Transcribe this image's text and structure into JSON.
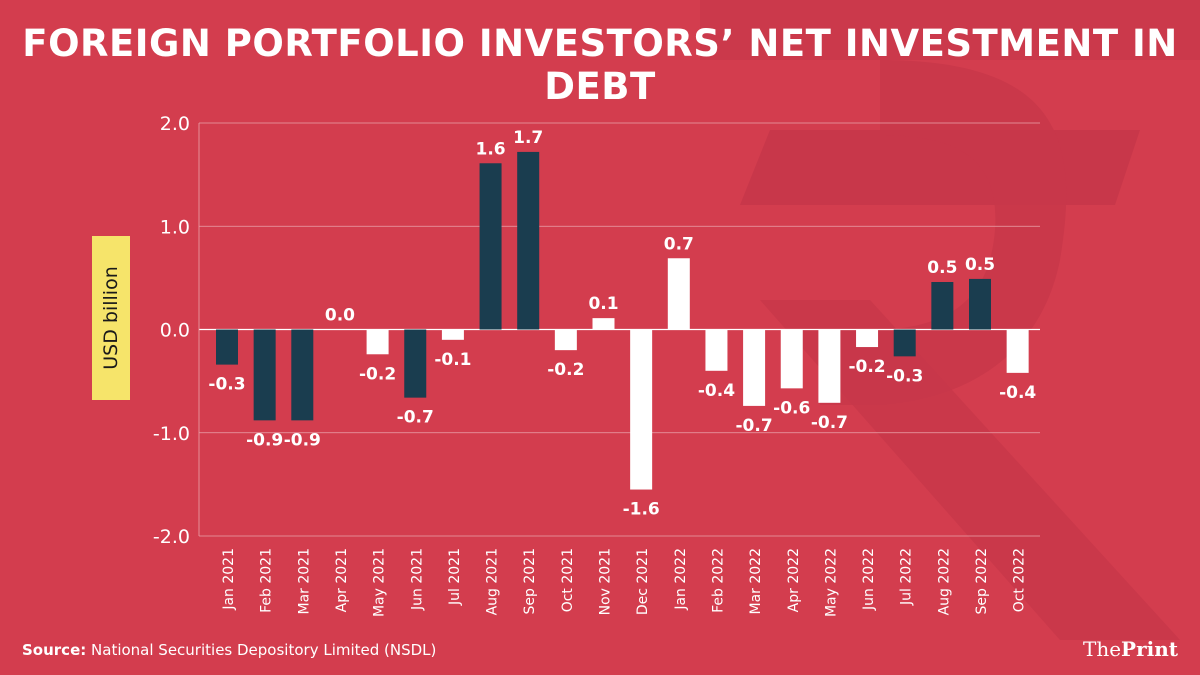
{
  "title": "FOREIGN PORTFOLIO INVESTORS’ NET INVESTMENT IN DEBT",
  "ylabel": "USD billion",
  "source_label": "Source:",
  "source_text": "National Securities Depository Limited (NSDL)",
  "logo": {
    "part1": "The",
    "part2": "Print"
  },
  "colors": {
    "background": "#d33d4e",
    "dark_bar": "#1a3d4f",
    "light_bar": "#ffffff",
    "text": "#ffffff",
    "ylabel_box": "#f6e46a",
    "grid": "#e9a3ab"
  },
  "chart_data": {
    "type": "bar",
    "title": "FOREIGN PORTFOLIO INVESTORS’ NET INVESTMENT IN DEBT",
    "xlabel": "",
    "ylabel": "USD billion",
    "ylim": [
      -2.0,
      2.0
    ],
    "yticks": [
      2.0,
      1.0,
      0.0,
      -1.0,
      -2.0
    ],
    "ytick_labels": [
      "2.0",
      "1.0",
      "0.0",
      "-1.0",
      "-2.0"
    ],
    "grid": true,
    "categories": [
      "Jan 2021",
      "Feb 2021",
      "Mar 2021",
      "Apr 2021",
      "May 2021",
      "Jun 2021",
      "Jul 2021",
      "Aug 2021",
      "Sep 2021",
      "Oct 2021",
      "Nov 2021",
      "Dec 2021",
      "Jan 2022",
      "Feb 2022",
      "Mar 2022",
      "Apr 2022",
      "May 2022",
      "Jun 2022",
      "Jul 2022",
      "Aug 2022",
      "Sep 2022",
      "Oct 2022"
    ],
    "values": [
      -0.34,
      -0.88,
      -0.88,
      0.0,
      -0.24,
      -0.66,
      -0.1,
      1.61,
      1.72,
      -0.2,
      0.11,
      -1.55,
      0.69,
      -0.4,
      -0.74,
      -0.57,
      -0.71,
      -0.17,
      -0.26,
      0.46,
      0.49,
      -0.42
    ],
    "labels": [
      "-0.3",
      "-0.9",
      "-0.9",
      "0.0",
      "-0.2",
      "-0.7",
      "-0.1",
      "1.6",
      "1.7",
      "-0.2",
      "0.1",
      "-1.6",
      "0.7",
      "-0.4",
      "-0.7",
      "-0.6",
      "-0.7",
      "-0.2",
      "-0.3",
      "0.5",
      "0.5",
      "-0.4"
    ],
    "bar_colors": [
      "dark",
      "dark",
      "dark",
      "light",
      "light",
      "dark",
      "light",
      "dark",
      "dark",
      "light",
      "light",
      "light",
      "light",
      "light",
      "light",
      "light",
      "light",
      "light",
      "dark",
      "dark",
      "dark",
      "light"
    ]
  }
}
